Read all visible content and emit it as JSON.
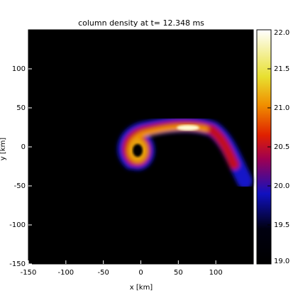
{
  "chart_data": {
    "type": "heatmap",
    "title": "column density at t= 12.348 ms",
    "x_label": "x [km]",
    "y_label": "y [km]",
    "xlim": [
      -150,
      150
    ],
    "xticks": [
      -150,
      -100,
      -50,
      0,
      50,
      100
    ],
    "ylim": [
      -150,
      150
    ],
    "yticks": [
      -150,
      -100,
      -50,
      0,
      50,
      100
    ],
    "clim": [
      19,
      22
    ],
    "cticks": [
      {
        "value": 19,
        "label": "19.0"
      },
      {
        "value": 19.5,
        "label": "19.5"
      },
      {
        "value": 20,
        "label": "20.0"
      },
      {
        "value": 20.5,
        "label": "20.5"
      },
      {
        "value": 21,
        "label": "21.0"
      },
      {
        "value": 21.5,
        "label": "21.5"
      },
      {
        "value": 22,
        "label": "22.0"
      }
    ]
  }
}
